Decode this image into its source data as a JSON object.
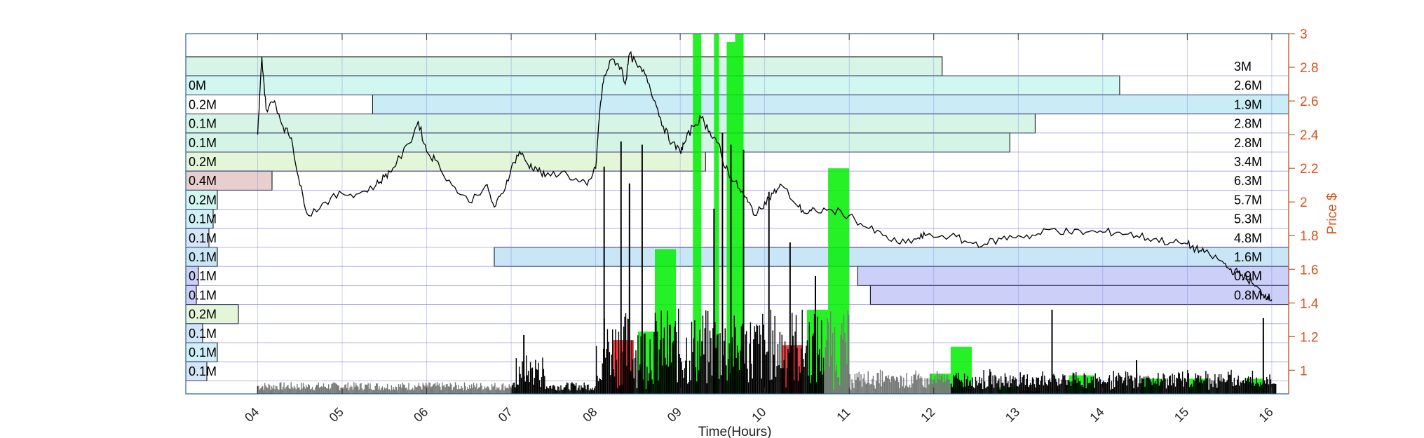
{
  "chart_data": {
    "type": "line",
    "xlabel": "Time(Hours)",
    "ylabel": "Price $",
    "x_range": [
      3.15,
      16.2
    ],
    "y_range": [
      0.86,
      3.0
    ],
    "x_ticks": [
      "04",
      "05",
      "06",
      "07",
      "08",
      "09",
      "10",
      "11",
      "12",
      "13",
      "14",
      "15",
      "16"
    ],
    "y_ticks": [
      1,
      1.2,
      1.4,
      1.6,
      1.8,
      2,
      2.2,
      2.4,
      2.6,
      2.8,
      3
    ],
    "y_tick_labels": [
      "1",
      "1.2",
      "1.4",
      "1.6",
      "1.8",
      "2",
      "2.2",
      "2.4",
      "2.6",
      "2.8",
      "3"
    ],
    "price_series": {
      "x": [
        4.0,
        4.05,
        4.1,
        4.2,
        4.3,
        4.4,
        4.5,
        4.6,
        4.8,
        5.0,
        5.2,
        5.4,
        5.5,
        5.6,
        5.8,
        5.9,
        6.0,
        6.1,
        6.3,
        6.5,
        6.7,
        6.8,
        6.9,
        7.0,
        7.1,
        7.2,
        7.3,
        7.4,
        7.6,
        7.8,
        7.9,
        8.0,
        8.05,
        8.1,
        8.2,
        8.3,
        8.35,
        8.4,
        8.5,
        8.6,
        8.7,
        8.8,
        8.9,
        9.0,
        9.05,
        9.15,
        9.25,
        9.35,
        9.45,
        9.5,
        9.6,
        9.7,
        9.8,
        9.9,
        10.0,
        10.1,
        10.2,
        10.4,
        10.5,
        10.6,
        10.8,
        11.0,
        11.2,
        11.4,
        11.6,
        11.8,
        11.9,
        12.2,
        12.4,
        12.6,
        12.8,
        13.0,
        13.2,
        13.4,
        13.6,
        13.8,
        14.0,
        14.2,
        14.4,
        14.6,
        14.8,
        15.0,
        15.1,
        15.2,
        15.4,
        15.5,
        15.6,
        15.7,
        15.8,
        15.9,
        15.95,
        16.0
      ],
      "y": [
        2.4,
        2.86,
        2.55,
        2.6,
        2.45,
        2.38,
        2.1,
        1.92,
        2.0,
        2.05,
        2.05,
        2.1,
        2.15,
        2.2,
        2.35,
        2.48,
        2.3,
        2.25,
        2.1,
        2.0,
        2.1,
        1.97,
        2.05,
        2.2,
        2.3,
        2.22,
        2.2,
        2.15,
        2.18,
        2.12,
        2.1,
        2.2,
        2.55,
        2.75,
        2.85,
        2.8,
        2.7,
        2.88,
        2.8,
        2.75,
        2.6,
        2.45,
        2.35,
        2.3,
        2.35,
        2.45,
        2.5,
        2.42,
        2.35,
        2.25,
        2.15,
        2.08,
        2.0,
        1.92,
        2.0,
        2.05,
        2.1,
        1.97,
        1.93,
        1.95,
        1.95,
        1.92,
        1.85,
        1.8,
        1.75,
        1.78,
        1.8,
        1.8,
        1.76,
        1.75,
        1.78,
        1.8,
        1.8,
        1.84,
        1.82,
        1.82,
        1.82,
        1.82,
        1.8,
        1.78,
        1.76,
        1.75,
        1.72,
        1.7,
        1.65,
        1.6,
        1.58,
        1.55,
        1.5,
        1.45,
        1.44,
        1.42
      ]
    },
    "volume_profile": [
      {
        "price": 2.8,
        "left_label": "",
        "left_fraction": 0.0,
        "right_label": "3M",
        "right_start_x": 3.15,
        "right_end_x": 12.1,
        "color": "#d6f5e6"
      },
      {
        "price": 2.6,
        "left_label": "0M",
        "left_fraction": 0.03,
        "right_label": "2.6M",
        "right_start_x": 3.15,
        "right_end_x": 14.2,
        "color": "#d0f7f0"
      },
      {
        "price": 2.4,
        "left_label": "0.2M",
        "left_fraction": 0.0,
        "right_label": "1.9M",
        "right_start_x": 5.36,
        "right_end_x": 16.2,
        "color": "#c9ecf7"
      },
      {
        "price": 2.2,
        "left_label": "0.1M",
        "left_fraction": 0.05,
        "right_label": "2.8M",
        "right_start_x": 3.15,
        "right_end_x": 13.2,
        "color": "#d6f5e6"
      },
      {
        "price": 2.0,
        "left_label": "0.1M",
        "left_fraction": 0.28,
        "right_label": "2.8M",
        "right_start_x": 3.15,
        "right_end_x": 12.9,
        "color": "#d4f5e6"
      },
      {
        "price": 1.8,
        "left_label": "0.2M",
        "left_fraction": 0.4,
        "right_label": "3.4M",
        "right_start_x": 3.15,
        "right_end_x": 9.3,
        "color": "#e3f7d8"
      },
      {
        "price": 1.6,
        "left_label": "0.4M",
        "left_fraction": 0.82,
        "right_label": "6.3M",
        "right_start_x": 3.15,
        "right_end_x": 3.15,
        "color": "#e8cfcf"
      },
      {
        "price": 1.4,
        "left_label": "0.2M",
        "left_fraction": 0.3,
        "right_label": "5.7M",
        "right_start_x": 3.15,
        "right_end_x": 3.15,
        "color": "#d0f7f0"
      },
      {
        "price": 1.2,
        "left_label": "0.1M",
        "left_fraction": 0.26,
        "right_label": "5.3M",
        "right_start_x": 3.15,
        "right_end_x": 3.15,
        "color": "#d0f0f7"
      },
      {
        "price": 1.0,
        "left_label": "0.1M",
        "left_fraction": 0.22,
        "right_label": "4.8M",
        "right_start_x": 3.15,
        "right_end_x": 3.15,
        "color": "#d4e6f7"
      },
      {
        "price": 0.8,
        "left_label": "0.1M",
        "left_fraction": 0.3,
        "right_label": "1.6M",
        "right_start_x": 6.8,
        "right_end_x": 16.2,
        "color": "#c9e6f7"
      },
      {
        "price": 0.6,
        "left_label": "0.1M",
        "left_fraction": 0.12,
        "right_label": "0.9M",
        "right_start_x": 11.1,
        "right_end_x": 16.2,
        "color": "#cccff7"
      },
      {
        "price": 0.4,
        "left_label": "0.1M",
        "left_fraction": 0.1,
        "right_label": "0.8M",
        "right_start_x": 11.25,
        "right_end_x": 16.2,
        "color": "#cccff7"
      },
      {
        "price": 0.2,
        "left_label": "0.2M",
        "left_fraction": 0.5,
        "right_label": "",
        "right_start_x": 3.15,
        "right_end_x": 3.15,
        "color": "#e3f7d8"
      },
      {
        "price": 0.0,
        "left_label": "0.1M",
        "left_fraction": 0.16,
        "right_label": "",
        "right_start_x": 3.15,
        "right_end_x": 3.15,
        "color": "#d0e6f7"
      },
      {
        "price": -0.2,
        "left_label": "0.1M",
        "left_fraction": 0.3,
        "right_label": "",
        "right_start_x": 3.15,
        "right_end_x": 3.15,
        "color": "#d0f0f7"
      },
      {
        "price": -0.4,
        "left_label": "0.1M",
        "left_fraction": 0.2,
        "right_label": "",
        "right_start_x": 3.15,
        "right_end_x": 3.15,
        "color": "#d4e6f7"
      }
    ],
    "net_flow_bars": [
      {
        "x0": 8.7,
        "x1": 8.95,
        "value": 1.72,
        "direction": "buy"
      },
      {
        "x0": 8.5,
        "x1": 8.75,
        "value": 1.23,
        "direction": "buy"
      },
      {
        "x0": 9.15,
        "x1": 9.25,
        "value": 3.0,
        "direction": "buy"
      },
      {
        "x0": 9.4,
        "x1": 9.46,
        "value": 3.0,
        "direction": "buy"
      },
      {
        "x0": 9.55,
        "x1": 9.65,
        "value": 2.95,
        "direction": "buy"
      },
      {
        "x0": 9.65,
        "x1": 9.75,
        "value": 3.0,
        "direction": "buy"
      },
      {
        "x0": 10.5,
        "x1": 10.75,
        "value": 1.36,
        "direction": "buy"
      },
      {
        "x0": 10.75,
        "x1": 11.0,
        "value": 2.2,
        "direction": "buy"
      },
      {
        "x0": 10.2,
        "x1": 10.45,
        "value": 1.15,
        "direction": "sell"
      },
      {
        "x0": 8.2,
        "x1": 8.45,
        "value": 1.18,
        "direction": "sell"
      },
      {
        "x0": 12.2,
        "x1": 12.45,
        "value": 1.14,
        "direction": "buy"
      },
      {
        "x0": 11.95,
        "x1": 12.2,
        "value": 0.98,
        "direction": "buy"
      },
      {
        "x0": 12.75,
        "x1": 13.0,
        "value": 0.9,
        "direction": "buy"
      },
      {
        "x0": 13.6,
        "x1": 13.9,
        "value": 0.97,
        "direction": "buy"
      },
      {
        "x0": 14.45,
        "x1": 14.7,
        "value": 0.95,
        "direction": "buy"
      },
      {
        "x0": 15.0,
        "x1": 15.25,
        "value": 0.95,
        "direction": "buy"
      },
      {
        "x0": 15.7,
        "x1": 15.9,
        "value": 0.95,
        "direction": "buy"
      },
      {
        "x0": 13.0,
        "x1": 13.25,
        "value": 0.88,
        "direction": "sell"
      }
    ],
    "volume_spikes": [
      {
        "x": 8.1,
        "h": 1.35
      },
      {
        "x": 8.3,
        "h": 1.5
      },
      {
        "x": 8.4,
        "h": 1.25
      },
      {
        "x": 8.55,
        "h": 1.48
      },
      {
        "x": 9.4,
        "h": 1.1
      },
      {
        "x": 9.5,
        "h": 1.55
      },
      {
        "x": 9.6,
        "h": 1.48
      },
      {
        "x": 9.75,
        "h": 1.45
      },
      {
        "x": 10.05,
        "h": 1.2
      },
      {
        "x": 10.3,
        "h": 0.9
      },
      {
        "x": 10.6,
        "h": 0.7
      },
      {
        "x": 7.15,
        "h": 0.35
      },
      {
        "x": 13.4,
        "h": 0.5
      },
      {
        "x": 14.4,
        "h": 0.2
      },
      {
        "x": 15.9,
        "h": 0.45
      }
    ],
    "grid": true,
    "colors": {
      "axis": "#2a5f9e",
      "grid": "#7777dd",
      "right_axis": "#d95319",
      "price_line": "#000000",
      "buy": "#00ee00",
      "sell": "#ee2222",
      "volume": "#000000"
    }
  }
}
